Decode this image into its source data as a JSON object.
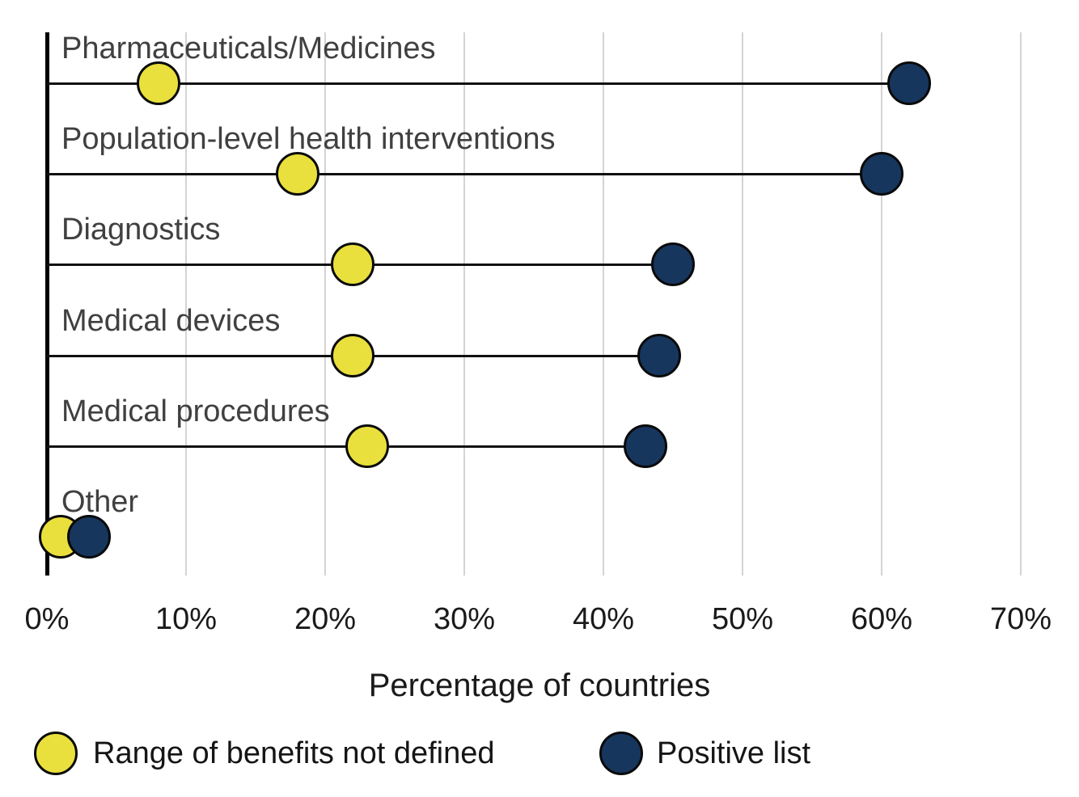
{
  "chart_data": {
    "type": "scatter",
    "subtype": "dumbbell",
    "categories": [
      "Pharmaceuticals/Medicines",
      "Population-level health interventions",
      "Diagnostics",
      "Medical devices",
      "Medical procedures",
      "Other"
    ],
    "series": [
      {
        "name": "Range of benefits not defined",
        "color": "#e9e03d",
        "values": [
          8,
          18,
          22,
          22,
          23,
          1
        ]
      },
      {
        "name": "Positive list",
        "color": "#17365e",
        "values": [
          62,
          60,
          45,
          44,
          43,
          3
        ]
      }
    ],
    "xlabel": "Percentage of countries",
    "x_tick_values": [
      0,
      10,
      20,
      30,
      40,
      50,
      60,
      70
    ],
    "x_tick_labels": [
      "0%",
      "10%",
      "20%",
      "30%",
      "40%",
      "50%",
      "60%",
      "70%"
    ],
    "xlim": [
      0,
      70
    ],
    "grid": "vertical",
    "legend_position": "bottom",
    "colors": {
      "grid": "#d4d4d4",
      "axis": "#000000",
      "connector_line": "#111111",
      "category_label": "#404040",
      "tick_label": "#1a1a1a"
    }
  }
}
